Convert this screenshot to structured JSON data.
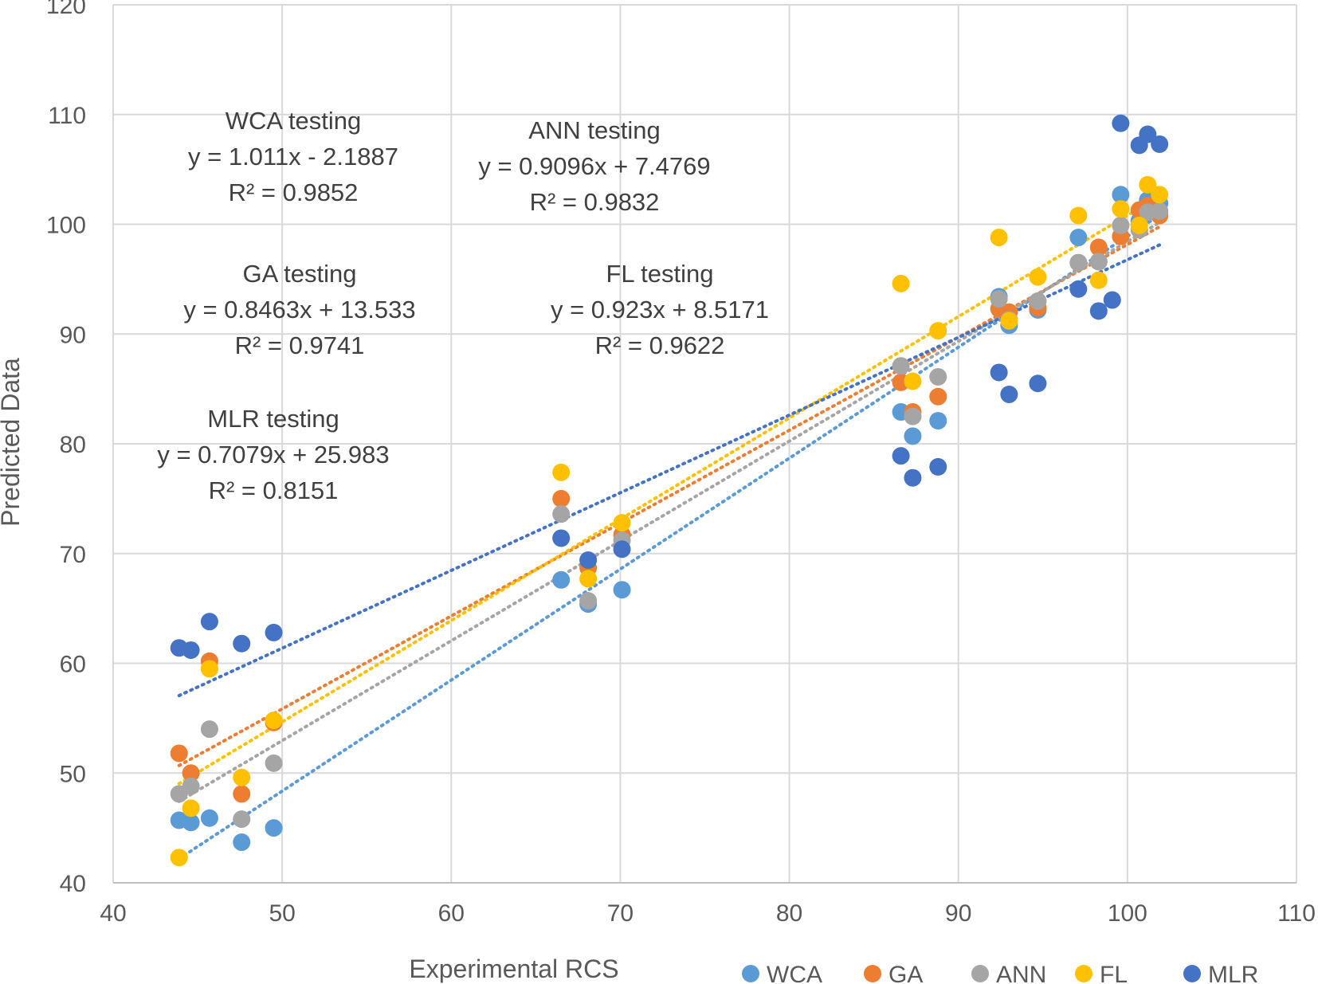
{
  "chart_data": {
    "type": "scatter",
    "title": "",
    "xlabel": "Experimental RCS",
    "ylabel": "Predicted Data",
    "xlim": [
      40,
      110
    ],
    "ylim": [
      40,
      120
    ],
    "xticks": [
      "40",
      "50",
      "60",
      "70",
      "80",
      "90",
      "100",
      "110"
    ],
    "yticks": [
      "40",
      "50",
      "60",
      "70",
      "80",
      "90",
      "100",
      "110",
      "120"
    ],
    "grid": true,
    "legend_position": "bottom-right",
    "annotations": [
      {
        "id": "wca",
        "lines": [
          "WCA testing",
          "y = 1.011x - 2.1887",
          "R² = 0.9852"
        ]
      },
      {
        "id": "ann",
        "lines": [
          "ANN testing",
          "y = 0.9096x + 7.4769",
          "R² = 0.9832"
        ]
      },
      {
        "id": "ga",
        "lines": [
          "GA testing",
          "y = 0.8463x + 13.533",
          "R² = 0.9741"
        ]
      },
      {
        "id": "fl",
        "lines": [
          "FL testing",
          "y = 0.923x + 8.5171",
          "R² = 0.9622"
        ]
      },
      {
        "id": "mlr",
        "lines": [
          "MLR testing",
          "y = 0.7079x + 25.983",
          "R² = 0.8151"
        ]
      }
    ],
    "series": [
      {
        "name": "WCA",
        "color": "#5B9BD5",
        "trendline": {
          "slope": 1.011,
          "intercept": -2.1887,
          "x_range": [
            43.9,
            101.9
          ]
        },
        "points": [
          [
            43.9,
            45.7
          ],
          [
            44.6,
            45.5
          ],
          [
            45.7,
            45.9
          ],
          [
            47.6,
            43.7
          ],
          [
            49.5,
            45.0
          ],
          [
            66.5,
            67.6
          ],
          [
            68.1,
            65.4
          ],
          [
            70.1,
            66.7
          ],
          [
            86.6,
            82.9
          ],
          [
            87.3,
            80.7
          ],
          [
            88.8,
            82.1
          ],
          [
            92.4,
            93.4
          ],
          [
            93.0,
            90.8
          ],
          [
            94.7,
            92.2
          ],
          [
            97.1,
            98.8
          ],
          [
            98.3,
            96.6
          ],
          [
            99.6,
            102.7
          ],
          [
            100.7,
            100.3
          ],
          [
            101.2,
            102.2
          ],
          [
            101.9,
            101.9
          ]
        ]
      },
      {
        "name": "GA",
        "color": "#ED7D31",
        "trendline": {
          "slope": 0.8463,
          "intercept": 13.533,
          "x_range": [
            43.9,
            101.9
          ]
        },
        "points": [
          [
            43.9,
            51.8
          ],
          [
            44.6,
            50.0
          ],
          [
            45.7,
            60.2
          ],
          [
            47.6,
            48.1
          ],
          [
            49.5,
            54.6
          ],
          [
            66.5,
            75.0
          ],
          [
            68.1,
            68.7
          ],
          [
            70.1,
            71.7
          ],
          [
            86.6,
            85.6
          ],
          [
            87.3,
            82.9
          ],
          [
            88.8,
            84.3
          ],
          [
            92.4,
            92.3
          ],
          [
            93.0,
            92.0
          ],
          [
            94.7,
            92.4
          ],
          [
            97.1,
            96.5
          ],
          [
            98.3,
            97.9
          ],
          [
            99.6,
            98.9
          ],
          [
            100.7,
            101.3
          ],
          [
            101.2,
            101.7
          ],
          [
            101.9,
            100.8
          ]
        ]
      },
      {
        "name": "ANN",
        "color": "#A5A5A5",
        "trendline": {
          "slope": 0.9096,
          "intercept": 7.4769,
          "x_range": [
            43.9,
            101.9
          ]
        },
        "points": [
          [
            43.9,
            48.1
          ],
          [
            44.6,
            48.8
          ],
          [
            45.7,
            54.0
          ],
          [
            47.6,
            45.8
          ],
          [
            49.5,
            50.9
          ],
          [
            66.5,
            73.6
          ],
          [
            68.1,
            65.7
          ],
          [
            70.1,
            71.2
          ],
          [
            86.6,
            87.1
          ],
          [
            87.3,
            82.5
          ],
          [
            88.8,
            86.1
          ],
          [
            92.4,
            93.2
          ],
          [
            93.0,
            91.3
          ],
          [
            94.7,
            93.0
          ],
          [
            97.1,
            96.5
          ],
          [
            98.3,
            96.6
          ],
          [
            99.6,
            99.9
          ],
          [
            100.7,
            99.5
          ],
          [
            101.2,
            101.1
          ],
          [
            101.9,
            101.2
          ]
        ]
      },
      {
        "name": "FL",
        "color": "#FFC000",
        "trendline": {
          "slope": 0.923,
          "intercept": 8.5171,
          "x_range": [
            43.9,
            101.9
          ]
        },
        "points": [
          [
            43.9,
            42.3
          ],
          [
            44.6,
            46.8
          ],
          [
            45.7,
            59.5
          ],
          [
            47.6,
            49.6
          ],
          [
            49.5,
            54.8
          ],
          [
            66.5,
            77.4
          ],
          [
            68.1,
            67.7
          ],
          [
            70.1,
            72.8
          ],
          [
            86.6,
            94.6
          ],
          [
            87.3,
            85.7
          ],
          [
            88.8,
            90.3
          ],
          [
            92.4,
            98.8
          ],
          [
            93.0,
            91.2
          ],
          [
            94.7,
            95.2
          ],
          [
            97.1,
            100.8
          ],
          [
            98.3,
            94.9
          ],
          [
            99.6,
            101.4
          ],
          [
            100.7,
            99.9
          ],
          [
            101.2,
            103.6
          ],
          [
            101.9,
            102.7
          ]
        ]
      },
      {
        "name": "MLR",
        "color": "#4472C4",
        "trendline": {
          "slope": 0.7079,
          "intercept": 25.983,
          "x_range": [
            43.9,
            101.9
          ]
        },
        "points": [
          [
            43.9,
            61.4
          ],
          [
            44.6,
            61.2
          ],
          [
            45.7,
            63.8
          ],
          [
            47.6,
            61.8
          ],
          [
            49.5,
            62.8
          ],
          [
            66.5,
            71.4
          ],
          [
            68.1,
            69.4
          ],
          [
            70.1,
            70.4
          ],
          [
            86.6,
            78.9
          ],
          [
            87.3,
            76.9
          ],
          [
            88.8,
            77.9
          ],
          [
            92.4,
            86.5
          ],
          [
            93.0,
            84.5
          ],
          [
            94.7,
            85.5
          ],
          [
            97.1,
            94.1
          ],
          [
            98.3,
            92.1
          ],
          [
            99.6,
            109.2
          ],
          [
            100.7,
            107.2
          ],
          [
            101.2,
            108.2
          ],
          [
            101.9,
            107.3
          ],
          [
            99.1,
            93.1
          ]
        ]
      }
    ]
  }
}
